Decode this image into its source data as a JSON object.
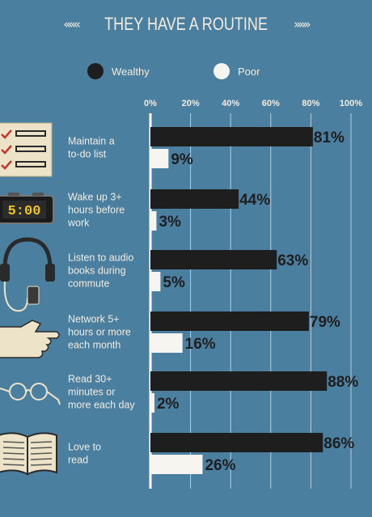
{
  "header": {
    "title": "THEY HAVE A ROUTINE",
    "left_ornament": "«««",
    "right_ornament": "»»»"
  },
  "colors": {
    "background": "#4a7fa0",
    "wealthy": "#1e1e1e",
    "poor": "#f7f5ef",
    "text": "#f2ece0",
    "grid": "#dfe8ee"
  },
  "icons": {
    "clock_display": "5:00"
  },
  "chart_data": {
    "type": "bar",
    "orientation": "horizontal",
    "legend_placement": "top",
    "grid": true,
    "xlim": [
      0,
      100
    ],
    "ticks": [
      "0%",
      "20%",
      "40%",
      "60%",
      "80%",
      "100%"
    ],
    "categories": [
      [
        "Maintain a",
        "to-do list"
      ],
      [
        "Wake up 3+",
        "hours before",
        "work"
      ],
      [
        "Listen to audio",
        "books during",
        "commute"
      ],
      [
        "Network 5+",
        "hours or more",
        "each month"
      ],
      [
        "Read 30+",
        "minutes or",
        "more each day"
      ],
      [
        "Love to",
        "read"
      ]
    ],
    "category_icons": [
      "checklist-icon",
      "alarm-clock-icon",
      "headphones-icon",
      "handshake-icon",
      "glasses-icon",
      "open-book-icon"
    ],
    "series": [
      {
        "name": "Wealthy",
        "values": [
          81,
          44,
          63,
          79,
          88,
          86
        ],
        "labels": [
          "81%",
          "44%",
          "63%",
          "79%",
          "88%",
          "86%"
        ]
      },
      {
        "name": "Poor",
        "values": [
          9,
          3,
          5,
          16,
          2,
          26
        ],
        "labels": [
          "9%",
          "3%",
          "5%",
          "16%",
          "2%",
          "26%"
        ]
      }
    ]
  }
}
